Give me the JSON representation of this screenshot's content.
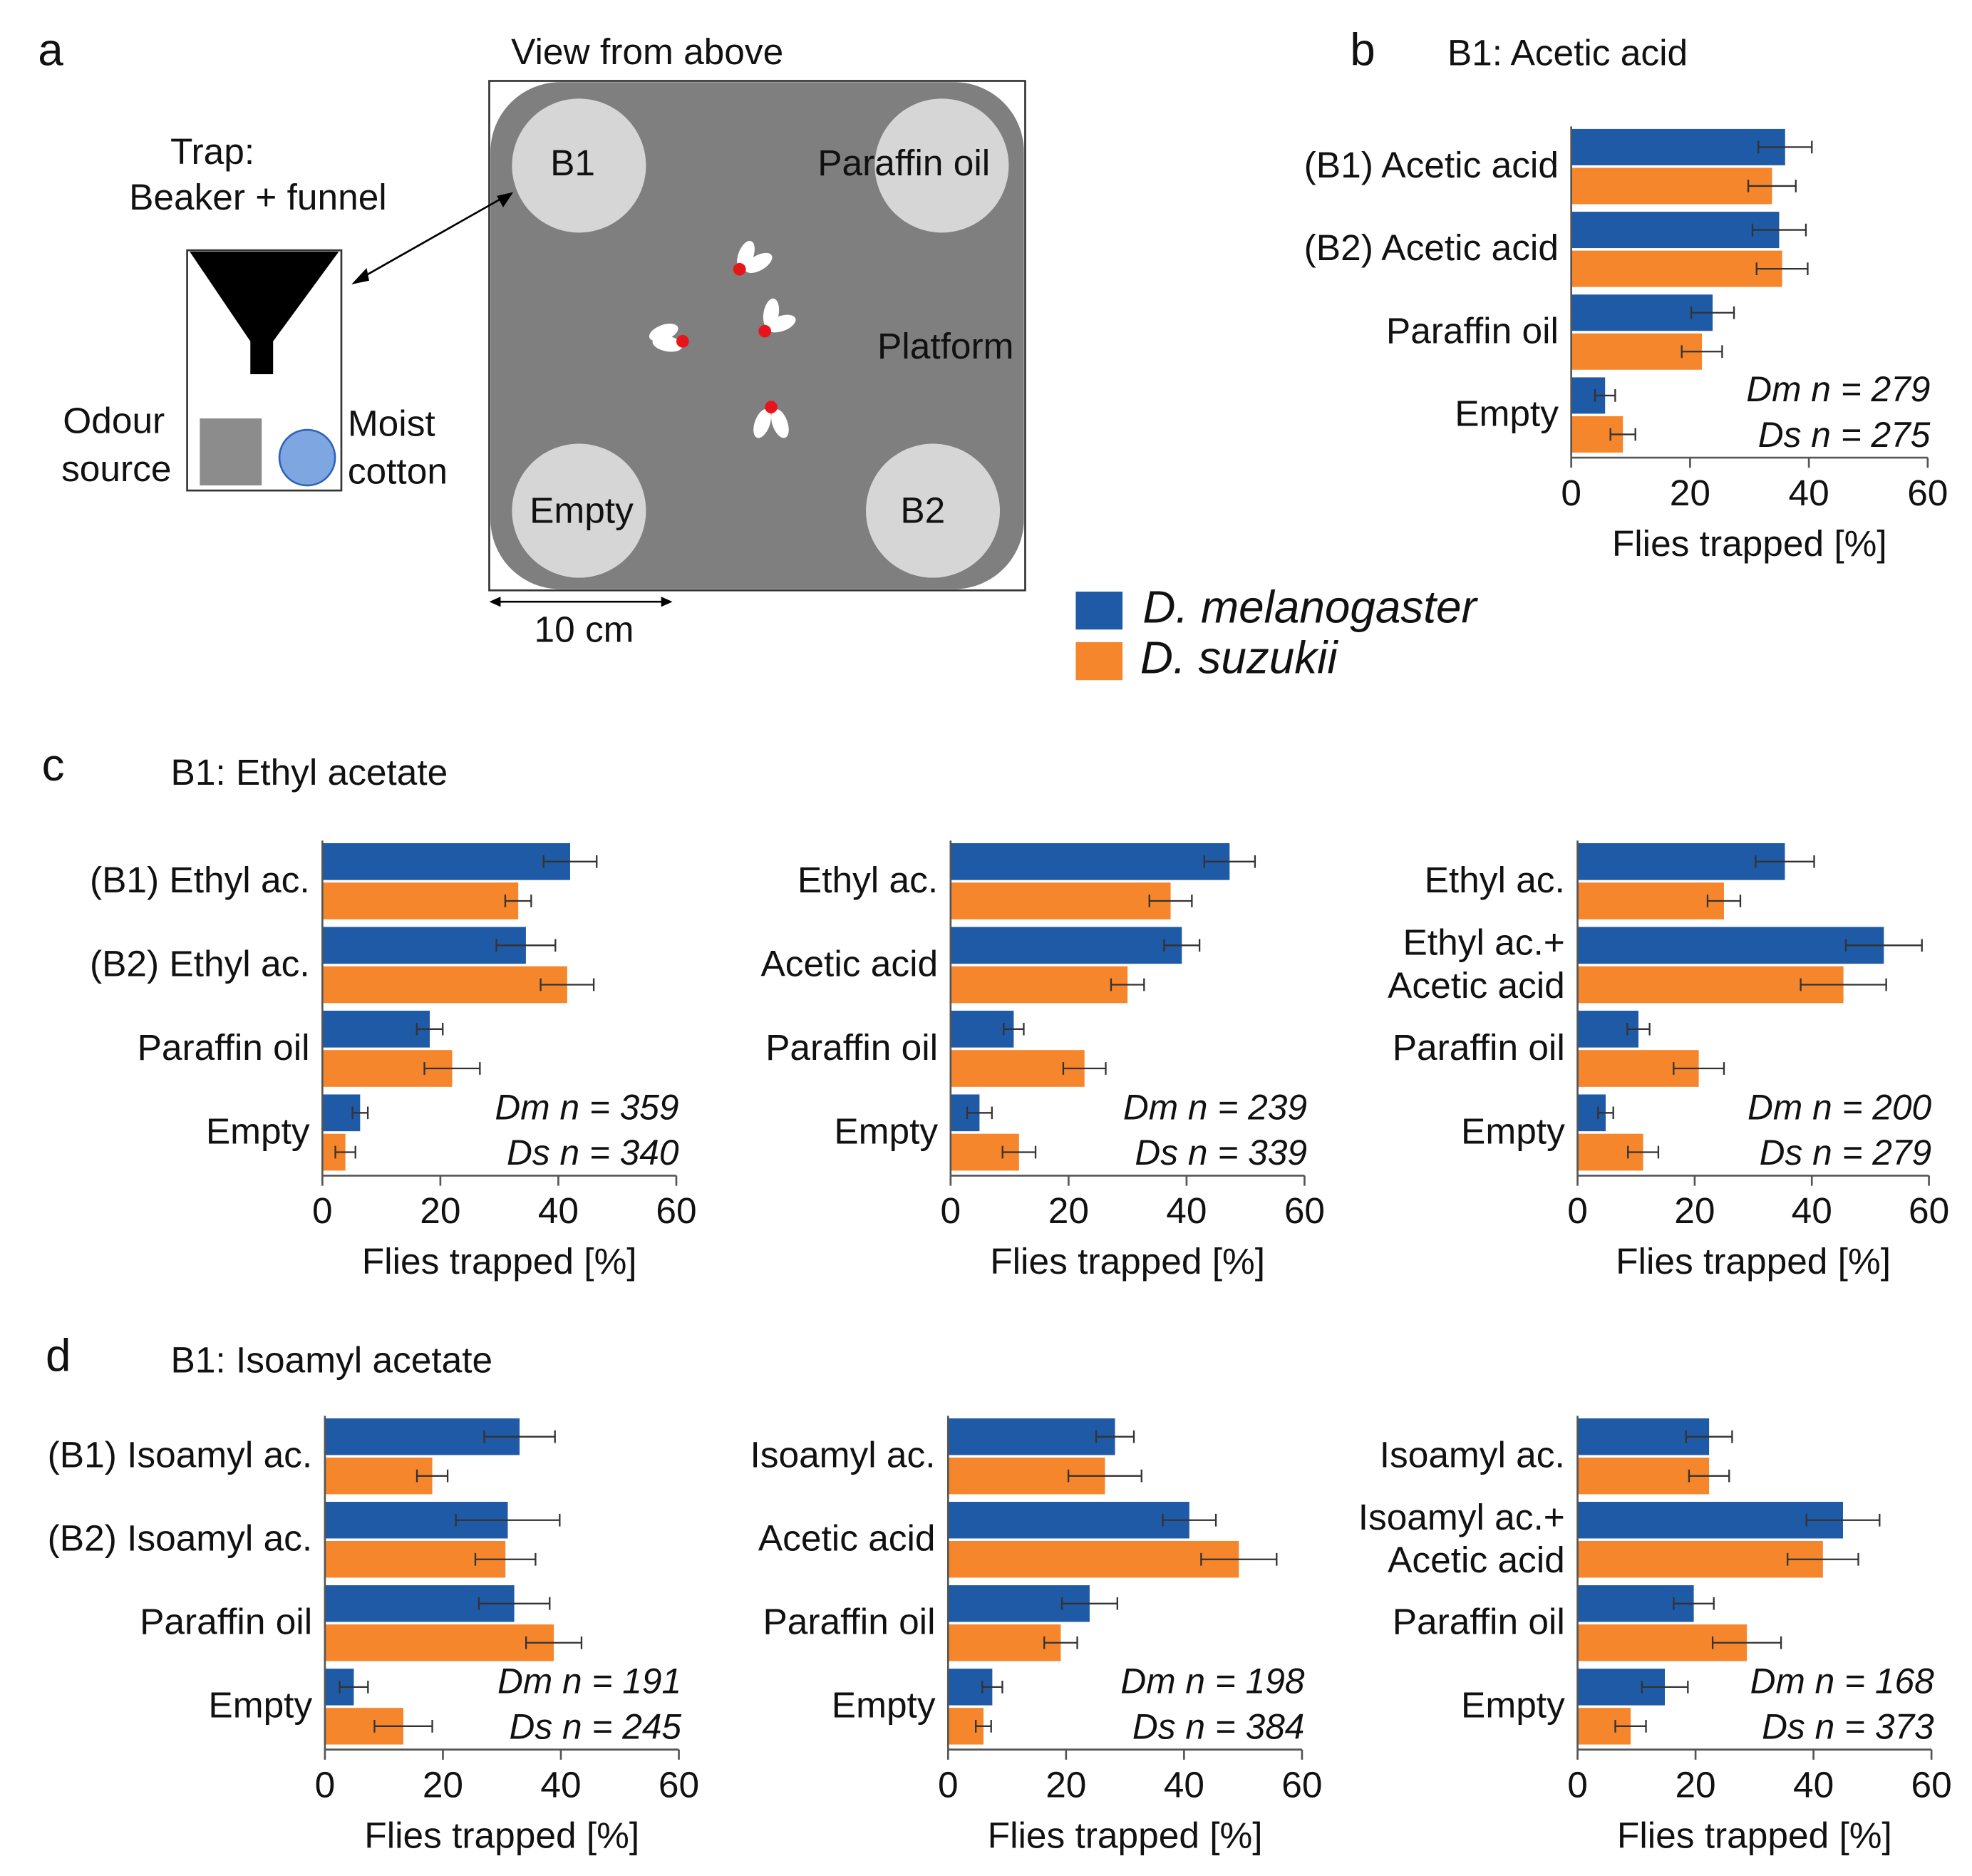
{
  "panel_labels": [
    "a",
    "b",
    "c",
    "d"
  ],
  "diagram": {
    "view_title": "View from above",
    "trap_lines": [
      "Trap:",
      "Beaker + funnel"
    ],
    "odour_lines": [
      "Odour",
      "source"
    ],
    "cotton_lines": [
      "Moist",
      "cotton"
    ],
    "positions": [
      "B1",
      "Paraffin oil",
      "Empty",
      "B2"
    ],
    "platform": "Platform",
    "scale": "10 cm"
  },
  "chart_data": [
    {
      "type": "barh",
      "title": "B1: Acetic acid",
      "categories": [
        "(B1) Acetic acid",
        "(B2) Acetic acid",
        "Paraffin oil",
        "Empty"
      ],
      "series": [
        {
          "name": "D. melanogaster",
          "color": "#1f5aa6",
          "values": [
            36,
            35,
            23.8,
            5.7
          ],
          "errors": [
            4.5,
            4.5,
            3.6,
            1.7
          ]
        },
        {
          "name": "D. suzukii",
          "color": "#f6862b",
          "values": [
            33.8,
            35.5,
            22,
            8.7
          ],
          "errors": [
            4,
            4.3,
            3.4,
            2.1
          ]
        }
      ],
      "xlim": [
        0,
        60
      ],
      "xticks": [
        0,
        20,
        40,
        60
      ],
      "xlabel": "Flies trapped [%]",
      "annotations": [
        "Dm n = 279",
        "Ds n = 275"
      ]
    },
    {
      "type": "barh",
      "title": "B1: Ethyl acetate",
      "categories": [
        "(B1) Ethyl ac.",
        "(B2) Ethyl ac.",
        "Paraffin oil",
        "Empty"
      ],
      "series": [
        {
          "name": "D. melanogaster",
          "color": "#1f5aa6",
          "values": [
            42,
            34.5,
            18.2,
            6.4
          ],
          "errors": [
            4.5,
            5,
            2.2,
            1.3
          ]
        },
        {
          "name": "D. suzukii",
          "color": "#f6862b",
          "values": [
            33.2,
            41.5,
            22,
            3.9
          ],
          "errors": [
            2.2,
            4.5,
            4.7,
            1.7
          ]
        }
      ],
      "xlim": [
        0,
        60
      ],
      "xticks": [
        0,
        20,
        40,
        60
      ],
      "xlabel": "Flies trapped [%]",
      "annotations": [
        "Dm n = 359",
        "Ds n = 340"
      ]
    },
    {
      "type": "barh",
      "categories": [
        "Ethyl ac.",
        "Acetic acid",
        "Paraffin oil",
        "Empty"
      ],
      "series": [
        {
          "name": "D. melanogaster",
          "color": "#1f5aa6",
          "values": [
            47.3,
            39.2,
            10.7,
            4.9
          ],
          "errors": [
            4.3,
            3,
            1.7,
            2.1
          ]
        },
        {
          "name": "D. suzukii",
          "color": "#f6862b",
          "values": [
            37.3,
            30,
            22.7,
            11.6
          ],
          "errors": [
            3.6,
            2.8,
            3.6,
            2.8
          ]
        }
      ],
      "xlim": [
        0,
        60
      ],
      "xticks": [
        0,
        20,
        40,
        60
      ],
      "xlabel": "Flies trapped [%]",
      "annotations": [
        "Dm n = 239",
        "Ds n = 339"
      ]
    },
    {
      "type": "barh",
      "categories": [
        "Ethyl ac.",
        "Ethyl ac.+\nAcetic acid",
        "Paraffin oil",
        "Empty"
      ],
      "series": [
        {
          "name": "D. melanogaster",
          "color": "#1f5aa6",
          "values": [
            35.4,
            52.3,
            10.4,
            4.8
          ],
          "errors": [
            5,
            6.5,
            1.9,
            1.3
          ]
        },
        {
          "name": "D. suzukii",
          "color": "#f6862b",
          "values": [
            25,
            45.4,
            20.7,
            11.2
          ],
          "errors": [
            2.8,
            7.3,
            4.3,
            2.6
          ]
        }
      ],
      "xlim": [
        0,
        60
      ],
      "xticks": [
        0,
        20,
        40,
        60
      ],
      "xlabel": "Flies trapped [%]",
      "annotations": [
        "Dm n = 200",
        "Ds n = 279"
      ]
    },
    {
      "type": "barh",
      "title": "B1: Isoamyl acetate",
      "categories": [
        "(B1) Isoamyl ac.",
        "(B2) Isoamyl ac.",
        "Paraffin oil",
        "Empty"
      ],
      "series": [
        {
          "name": "D. melanogaster",
          "color": "#1f5aa6",
          "values": [
            33,
            31,
            32.1,
            4.9
          ],
          "errors": [
            6,
            8.8,
            6,
            2.4
          ]
        },
        {
          "name": "D. suzukii",
          "color": "#f6862b",
          "values": [
            18.2,
            30.6,
            38.8,
            13.3
          ],
          "errors": [
            2.6,
            5.1,
            4.7,
            4.9
          ]
        }
      ],
      "xlim": [
        0,
        60
      ],
      "xticks": [
        0,
        20,
        40,
        60
      ],
      "xlabel": "Flies trapped [%]",
      "annotations": [
        "Dm n = 191",
        "Ds n = 245"
      ]
    },
    {
      "type": "barh",
      "categories": [
        "Isoamyl ac.",
        "Acetic acid",
        "Paraffin oil",
        "Empty"
      ],
      "series": [
        {
          "name": "D. melanogaster",
          "color": "#1f5aa6",
          "values": [
            28.3,
            40.9,
            24,
            7.5
          ],
          "errors": [
            3.2,
            4.5,
            4.7,
            1.7
          ]
        },
        {
          "name": "D. suzukii",
          "color": "#f6862b",
          "values": [
            26.6,
            49.3,
            19.1,
            6
          ],
          "errors": [
            6.2,
            6.4,
            2.8,
            1.3
          ]
        }
      ],
      "xlim": [
        0,
        60
      ],
      "xticks": [
        0,
        20,
        40,
        60
      ],
      "xlabel": "Flies trapped [%]",
      "annotations": [
        "Dm n = 198",
        "Ds n = 384"
      ]
    },
    {
      "type": "barh",
      "categories": [
        "Isoamyl ac.",
        "Isoamyl ac.+\nAcetic acid",
        "Paraffin oil",
        "Empty"
      ],
      "series": [
        {
          "name": "D. melanogaster",
          "color": "#1f5aa6",
          "values": [
            22.3,
            45,
            19.7,
            14.8
          ],
          "errors": [
            3.9,
            6.2,
            3.4,
            3.9
          ]
        },
        {
          "name": "D. suzukii",
          "color": "#f6862b",
          "values": [
            22.3,
            41.6,
            28.7,
            9
          ],
          "errors": [
            3.4,
            6,
            5.8,
            2.6
          ]
        }
      ],
      "xlim": [
        0,
        60
      ],
      "xticks": [
        0,
        20,
        40,
        60
      ],
      "xlabel": "Flies trapped [%]",
      "annotations": [
        "Dm n = 168",
        "Ds n = 373"
      ]
    }
  ]
}
